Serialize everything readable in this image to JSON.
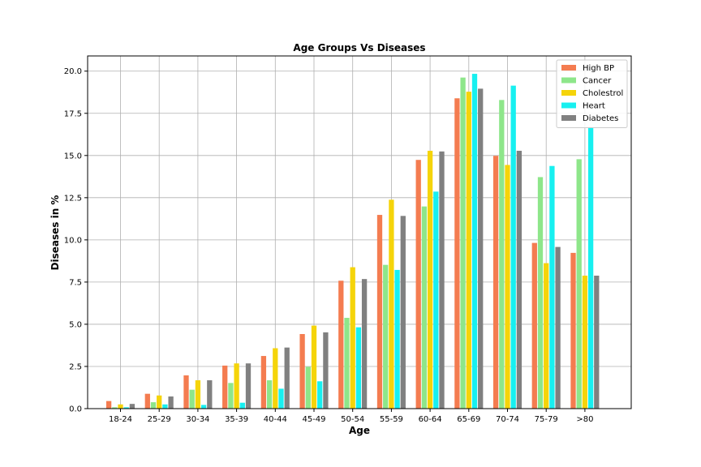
{
  "chart_data": {
    "type": "bar",
    "title": "Age Groups Vs Diseases",
    "xlabel": "Age",
    "ylabel": "Diseases in %",
    "ylim": [
      0,
      20.9
    ],
    "yticks": [
      "0.0",
      "2.5",
      "5.0",
      "7.5",
      "10.0",
      "12.5",
      "15.0",
      "17.5",
      "20.0"
    ],
    "grid": true,
    "legend_position": "top-right",
    "categories": [
      "18-24",
      "25-29",
      "30-34",
      "35-39",
      "40-44",
      "45-49",
      "50-54",
      "55-59",
      "60-64",
      "65-69",
      "70-74",
      "75-79",
      ">80"
    ],
    "series": [
      {
        "name": "High BP",
        "color": "#f47c50",
        "values": [
          0.45,
          0.88,
          1.97,
          2.55,
          3.12,
          4.42,
          7.58,
          11.48,
          14.74,
          18.39,
          14.98,
          9.82,
          9.23
        ]
      },
      {
        "name": "Cancer",
        "color": "#8ee68a",
        "values": [
          0.08,
          0.38,
          1.12,
          1.52,
          1.68,
          2.48,
          5.38,
          8.52,
          11.98,
          19.62,
          18.29,
          13.72,
          14.78
        ]
      },
      {
        "name": "Cholestrol",
        "color": "#f5d40a",
        "values": [
          0.25,
          0.78,
          1.68,
          2.68,
          3.58,
          4.92,
          8.38,
          12.38,
          15.28,
          18.78,
          14.44,
          8.62,
          7.88
        ]
      },
      {
        "name": "Heart",
        "color": "#17f0f0",
        "values": [
          0.08,
          0.25,
          0.22,
          0.35,
          1.18,
          1.62,
          4.82,
          8.22,
          12.86,
          19.84,
          19.14,
          14.38,
          16.68
        ]
      },
      {
        "name": "Diabetes",
        "color": "#808080",
        "values": [
          0.28,
          0.72,
          1.68,
          2.68,
          3.62,
          4.52,
          7.68,
          11.42,
          15.24,
          18.96,
          15.28,
          9.58,
          7.88
        ]
      }
    ]
  }
}
